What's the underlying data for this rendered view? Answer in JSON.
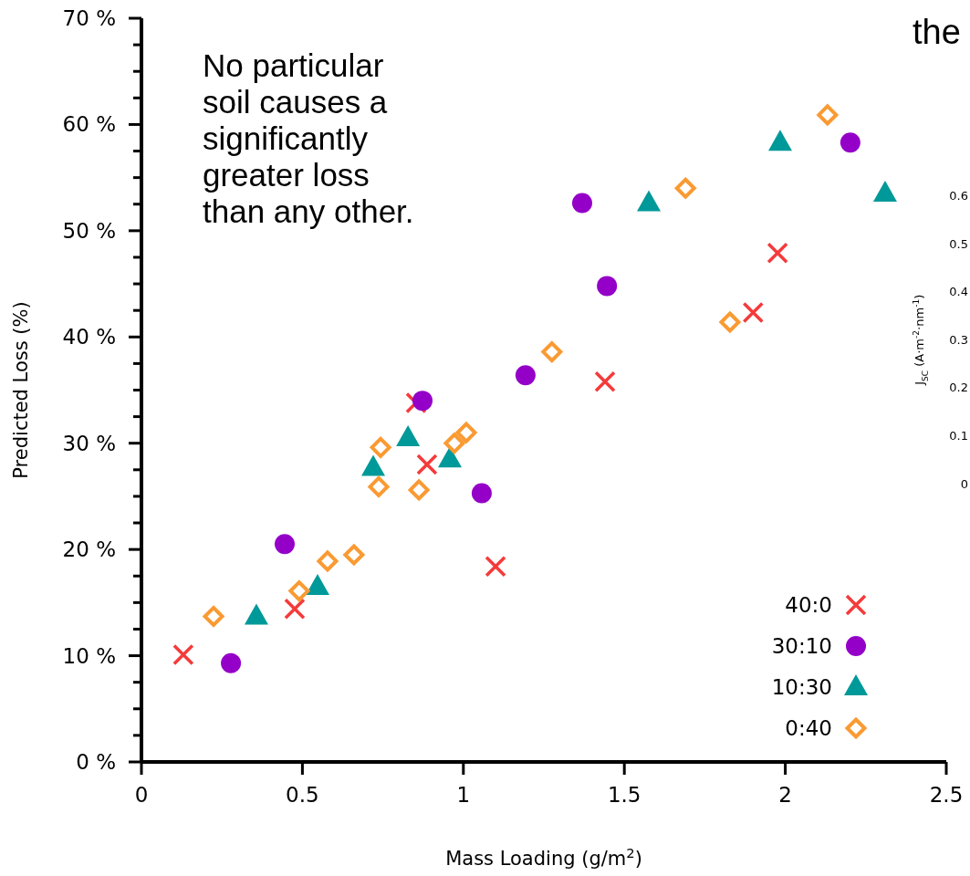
{
  "chart_data": {
    "type": "scatter",
    "xlabel": "Mass Loading (g/m$^{2}$)",
    "ylabel": "Predicted Loss (%)",
    "y2label": "J$_{SC}$ (A·m$^{-2}$·nm$^{-1}$)",
    "xlim": [
      0,
      2.5
    ],
    "xticks": [
      0,
      0.5,
      1,
      1.5,
      2,
      2.5
    ],
    "ylim": [
      0,
      70
    ],
    "yticks": [
      {
        "value": 0,
        "label": "0 %"
      },
      {
        "value": 2.5,
        "label": null
      },
      {
        "value": 5,
        "label": null
      },
      {
        "value": 7.5,
        "label": null
      },
      {
        "value": 10,
        "label": "10 %"
      },
      {
        "value": 12.5,
        "label": null
      },
      {
        "value": 15,
        "label": null
      },
      {
        "value": 17.5,
        "label": null
      },
      {
        "value": 20,
        "label": "20 %"
      },
      {
        "value": 22.5,
        "label": null
      },
      {
        "value": 25,
        "label": null
      },
      {
        "value": 27.5,
        "label": null
      },
      {
        "value": 30,
        "label": "30 %"
      },
      {
        "value": 32.5,
        "label": null
      },
      {
        "value": 35,
        "label": null
      },
      {
        "value": 37.5,
        "label": null
      },
      {
        "value": 40,
        "label": "40 %"
      },
      {
        "value": 42.5,
        "label": null
      },
      {
        "value": 45,
        "label": null
      },
      {
        "value": 47.5,
        "label": null
      },
      {
        "value": 50,
        "label": "50 %"
      },
      {
        "value": 52.5,
        "label": null
      },
      {
        "value": 55,
        "label": null
      },
      {
        "value": 57.5,
        "label": null
      },
      {
        "value": 60,
        "label": "60 %"
      },
      {
        "value": 62.5,
        "label": null
      },
      {
        "value": 65,
        "label": null
      },
      {
        "value": 67.5,
        "label": null
      },
      {
        "value": 70,
        "label": "70 %"
      }
    ],
    "y2lim": [
      -0.58,
      0.97
    ],
    "y2ticks": [
      0,
      0.1,
      0.2,
      0.3,
      0.4,
      0.5,
      0.6
    ],
    "legend": "bottom right",
    "annotations": [
      "No particular\nsoil causes a\nsignificantly\ngreater loss\nthan any other.",
      "the"
    ],
    "series": [
      {
        "name": "40:0",
        "color": "#f53a3a",
        "marker": "cross",
        "x": [
          0.13,
          0.476,
          0.853,
          0.887,
          1.1,
          1.44,
          1.9,
          1.976
        ],
        "values": [
          10.1,
          14.4,
          33.8,
          28.0,
          18.4,
          35.8,
          42.3,
          47.9
        ]
      },
      {
        "name": "30:10",
        "color": "#9400c8",
        "marker": "circle",
        "x": [
          0.278,
          0.445,
          0.873,
          1.057,
          1.193,
          1.369,
          1.446,
          2.202
        ],
        "values": [
          9.3,
          20.5,
          34.0,
          25.3,
          36.4,
          52.6,
          44.8,
          58.3
        ]
      },
      {
        "name": "10:30",
        "color": "#009999",
        "marker": "triangle",
        "x": [
          0.357,
          0.547,
          0.72,
          0.828,
          0.958,
          1.576,
          1.984,
          2.31
        ],
        "values": [
          13.7,
          16.5,
          27.7,
          30.5,
          28.5,
          52.6,
          58.3,
          53.5
        ]
      },
      {
        "name": "0:40",
        "color": "#fa9a32",
        "marker": "diamond",
        "x": [
          0.224,
          0.49,
          0.578,
          0.66,
          0.737,
          0.743,
          0.862,
          0.972,
          1.009,
          1.275,
          1.69,
          1.828,
          2.131
        ],
        "values": [
          13.7,
          16.1,
          18.9,
          19.5,
          25.9,
          29.6,
          25.6,
          30.0,
          31.0,
          38.6,
          54.0,
          41.4,
          60.9
        ]
      }
    ]
  }
}
